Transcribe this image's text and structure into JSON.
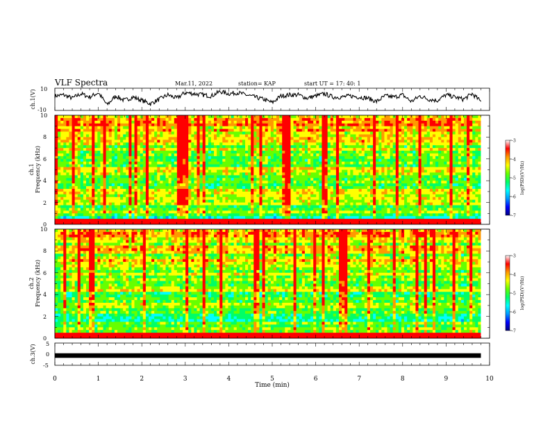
{
  "header": {
    "title": "VLF Spectra",
    "date": "Mar.11, 2022",
    "station": "station= KAP",
    "start": "start  UT =   17: 40: 1"
  },
  "chart_data": [
    {
      "type": "line",
      "panel": "ch1-waveform",
      "ylabel": "ch.1(V)",
      "ylim": [
        -10,
        10
      ],
      "yticks": [
        "10",
        "-10"
      ],
      "xlim": [
        0,
        10
      ],
      "data_end_min": 9.8,
      "color": "#000000",
      "x": [
        0.0,
        0.2,
        0.4,
        0.6,
        0.8,
        1.0,
        1.2,
        1.4,
        1.6,
        1.8,
        2.0,
        2.2,
        2.4,
        2.6,
        2.8,
        3.0,
        3.2,
        3.4,
        3.6,
        3.8,
        4.0,
        4.2,
        4.4,
        4.6,
        4.8,
        5.0,
        5.2,
        5.4,
        5.6,
        5.8,
        6.0,
        6.2,
        6.4,
        6.6,
        6.8,
        7.0,
        7.2,
        7.4,
        7.6,
        7.8,
        8.0,
        8.2,
        8.4,
        8.6,
        8.8,
        9.0,
        9.2,
        9.4,
        9.6,
        9.8
      ],
      "y": [
        3,
        4,
        1,
        5,
        2,
        6,
        -5,
        3,
        -1,
        2,
        -1,
        -4,
        0,
        4,
        1,
        6,
        5,
        4,
        3,
        7,
        5,
        6,
        4,
        2,
        0,
        -3,
        3,
        4,
        4,
        1,
        3,
        5,
        2,
        2,
        3,
        2,
        1,
        -2,
        3,
        2,
        4,
        -2,
        3,
        0,
        -1,
        4,
        2,
        0,
        5,
        -2
      ]
    },
    {
      "type": "heatmap",
      "panel": "ch1-spectrogram",
      "ylabel": "Frequency (kHz)",
      "channel_label": "ch.1",
      "ylim": [
        0,
        10
      ],
      "yticks": [
        "0",
        "2",
        "4",
        "6",
        "8",
        "10"
      ],
      "xlim": [
        0,
        10
      ],
      "data_end_min": 9.8,
      "colorbar": {
        "label": "log(PSD)(V²/Hz)",
        "min": -7,
        "max": -3,
        "ticks": [
          "-3",
          "-4",
          "-5",
          "-6",
          "-7"
        ]
      },
      "colormap": [
        "#000080",
        "#0000ff",
        "#0099ff",
        "#00ffff",
        "#00ff66",
        "#66ff00",
        "#ffff00",
        "#ff9900",
        "#ff0000",
        "#ffffff"
      ]
    },
    {
      "type": "heatmap",
      "panel": "ch2-spectrogram",
      "ylabel": "Frequency (kHz)",
      "channel_label": "ch.2",
      "ylim": [
        0,
        10
      ],
      "yticks": [
        "0",
        "2",
        "4",
        "6",
        "8",
        "10"
      ],
      "xlim": [
        0,
        10
      ],
      "data_end_min": 9.8,
      "colorbar": {
        "label": "log(PSD)(V²/Hz)",
        "min": -7,
        "max": -3,
        "ticks": [
          "-3",
          "-4",
          "-5",
          "-6",
          "-7"
        ]
      },
      "colormap": [
        "#000080",
        "#0000ff",
        "#0099ff",
        "#00ffff",
        "#00ff66",
        "#66ff00",
        "#ffff00",
        "#ff9900",
        "#ff0000",
        "#ffffff"
      ]
    },
    {
      "type": "line",
      "panel": "ch3-waveform",
      "ylabel": "ch.3(V)",
      "ylim": [
        -5,
        5
      ],
      "yticks": [
        "5",
        "0",
        "-5"
      ],
      "xlim": [
        0,
        10
      ],
      "data_end_min": 9.8,
      "color": "#000000",
      "band": [
        -0.4,
        0.4
      ]
    }
  ],
  "xaxis": {
    "label": "Time  (min)",
    "ticks": [
      "0",
      "1",
      "2",
      "3",
      "4",
      "5",
      "6",
      "7",
      "8",
      "9",
      "10"
    ]
  }
}
